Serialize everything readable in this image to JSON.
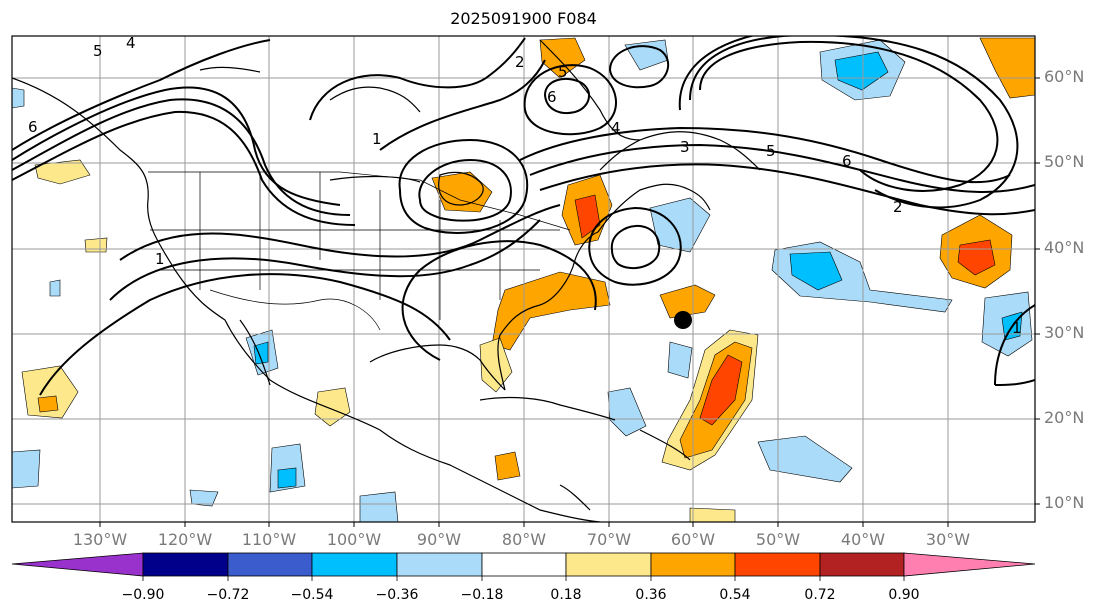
{
  "title": "2025091900 F084",
  "lat_labels": [
    "60°N",
    "50°N",
    "40°N",
    "30°N",
    "20°N",
    "10°N"
  ],
  "lon_labels": [
    "130°W",
    "120°W",
    "110°W",
    "100°W",
    "90°W",
    "80°W",
    "70°W",
    "60°W",
    "50°W",
    "40°W",
    "30°W"
  ],
  "contour_labels": [
    "5",
    "4",
    "6",
    "1",
    "2",
    "5",
    "6",
    "4",
    "3",
    "5",
    "6",
    "2",
    "1",
    "1"
  ],
  "marker": "storm-position-dot",
  "colorbar": {
    "ticks": [
      "−0.90",
      "−0.72",
      "−0.54",
      "−0.36",
      "−0.18",
      "0.18",
      "0.36",
      "0.54",
      "0.72",
      "0.90"
    ],
    "colors": [
      "#9932cc",
      "#00008b",
      "#3a5ccc",
      "#00bfff",
      "#aadcfa",
      "#ffffff",
      "#fde98c",
      "#ffa500",
      "#ff4500",
      "#b22222",
      "#ff80b0"
    ]
  }
}
